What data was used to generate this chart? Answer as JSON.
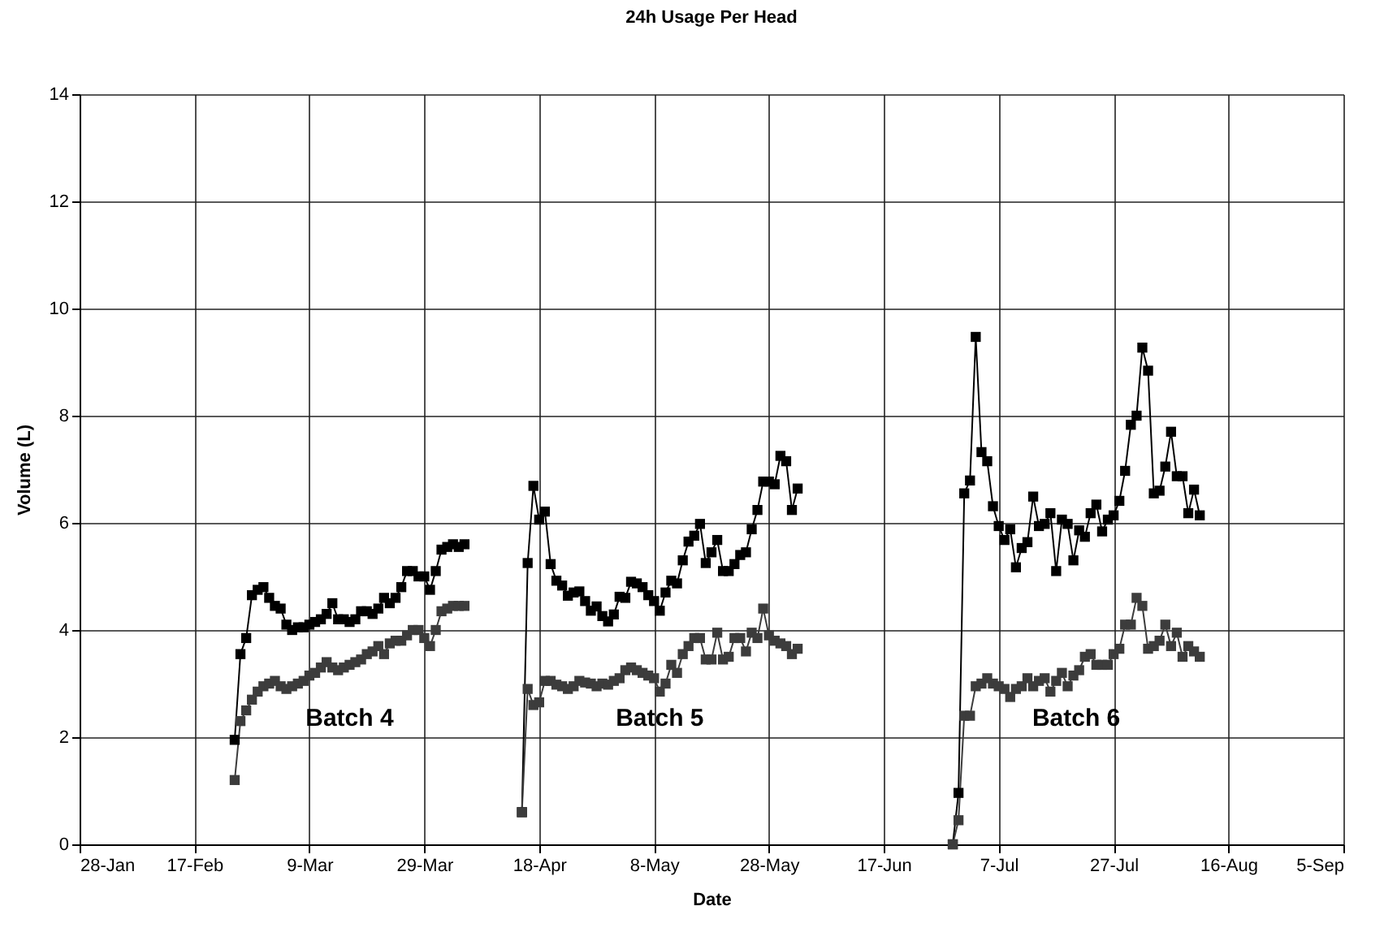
{
  "chart_data": {
    "type": "line",
    "title": "24h Usage Per Head",
    "xlabel": "Date",
    "ylabel": "Volume (L)",
    "x": [
      "--02-24",
      "--02-25",
      "--02-26",
      "--02-27",
      "--02-28",
      "--03-01",
      "--03-02",
      "--03-03",
      "--03-04",
      "--03-05",
      "--03-06",
      "--03-07",
      "--03-08",
      "--03-09",
      "--03-10",
      "--03-11",
      "--03-12",
      "--03-13",
      "--03-14",
      "--03-15",
      "--03-16",
      "--03-17",
      "--03-18",
      "--03-19",
      "--03-20",
      "--03-21",
      "--03-22",
      "--03-23",
      "--03-24",
      "--03-25",
      "--03-26",
      "--03-27",
      "--03-28",
      "--03-29",
      "--03-30",
      "--03-31",
      "--04-01",
      "--04-02",
      "--04-03",
      "--04-04",
      "--04-05",
      "--04-10",
      "--04-15",
      "--04-16",
      "--04-17",
      "--04-18",
      "--04-19",
      "--04-20",
      "--04-21",
      "--04-22",
      "--04-23",
      "--04-24",
      "--04-25",
      "--04-26",
      "--04-27",
      "--04-28",
      "--04-29",
      "--04-30",
      "--05-01",
      "--05-02",
      "--05-03",
      "--05-04",
      "--05-05",
      "--05-06",
      "--05-07",
      "--05-08",
      "--05-09",
      "--05-10",
      "--05-11",
      "--05-12",
      "--05-13",
      "--05-14",
      "--05-15",
      "--05-16",
      "--05-17",
      "--05-18",
      "--05-19",
      "--05-20",
      "--05-21",
      "--05-22",
      "--05-23",
      "--05-24",
      "--05-25",
      "--05-26",
      "--05-27",
      "--05-28",
      "--05-29",
      "--05-30",
      "--05-31",
      "--06-01",
      "--06-02",
      "--06-15",
      "--06-29",
      "--06-30",
      "--07-01",
      "--07-02",
      "--07-03",
      "--07-04",
      "--07-05",
      "--07-06",
      "--07-07",
      "--07-08",
      "--07-09",
      "--07-10",
      "--07-11",
      "--07-12",
      "--07-13",
      "--07-14",
      "--07-15",
      "--07-16",
      "--07-17",
      "--07-18",
      "--07-19",
      "--07-20",
      "--07-21",
      "--07-22",
      "--07-23",
      "--07-24",
      "--07-25",
      "--07-26",
      "--07-27",
      "--07-28",
      "--07-29",
      "--07-30",
      "--07-31",
      "--08-01",
      "--08-02",
      "--08-03",
      "--08-04",
      "--08-05",
      "--08-06",
      "--08-07",
      "--08-08",
      "--08-09",
      "--08-10",
      "--08-11"
    ],
    "series": [
      {
        "color": "#000000",
        "values": [
          1.95,
          3.55,
          3.85,
          4.65,
          4.75,
          4.8,
          4.6,
          4.45,
          4.4,
          4.1,
          4.0,
          4.05,
          4.05,
          4.1,
          4.15,
          4.2,
          4.3,
          4.5,
          4.2,
          4.2,
          4.15,
          4.2,
          4.35,
          4.35,
          4.3,
          4.4,
          4.6,
          4.5,
          4.6,
          4.8,
          5.1,
          5.1,
          5.0,
          5.0,
          4.75,
          5.1,
          5.5,
          5.55,
          5.6,
          5.55,
          5.6,
          null,
          0.6,
          5.25,
          6.69,
          6.06,
          6.21,
          5.23,
          4.92,
          4.83,
          4.64,
          4.7,
          4.72,
          4.54,
          4.36,
          4.44,
          4.26,
          4.16,
          4.29,
          4.62,
          4.6,
          4.9,
          4.87,
          4.8,
          4.65,
          4.54,
          4.36,
          4.7,
          4.92,
          4.87,
          5.3,
          5.65,
          5.76,
          5.98,
          5.25,
          5.45,
          5.68,
          5.1,
          5.1,
          5.23,
          5.4,
          5.45,
          5.88,
          6.24,
          6.77,
          6.77,
          6.72,
          7.25,
          7.15,
          6.24,
          6.64,
          null,
          0,
          0.96,
          6.55,
          6.79,
          9.47,
          7.32,
          7.15,
          6.31,
          5.94,
          5.68,
          5.88,
          5.17,
          5.53,
          5.64,
          6.49,
          5.94,
          5.98,
          6.18,
          5.1,
          6.06,
          5.98,
          5.3,
          5.86,
          5.74,
          6.18,
          6.34,
          5.84,
          6.06,
          6.14,
          6.41,
          6.97,
          7.83,
          8.0,
          9.27,
          8.84,
          6.55,
          6.6,
          7.05,
          7.7,
          6.87,
          6.87,
          6.18,
          6.62,
          6.14
        ]
      },
      {
        "color": "#3c3c3c",
        "values": [
          1.2,
          2.3,
          2.5,
          2.7,
          2.85,
          2.95,
          3.0,
          3.05,
          2.95,
          2.9,
          2.95,
          3.0,
          3.05,
          3.15,
          3.2,
          3.3,
          3.4,
          3.3,
          3.25,
          3.3,
          3.35,
          3.4,
          3.45,
          3.55,
          3.6,
          3.7,
          3.55,
          3.75,
          3.8,
          3.8,
          3.9,
          4.0,
          4.0,
          3.85,
          3.7,
          4.0,
          4.35,
          4.4,
          4.45,
          4.45,
          4.45,
          null,
          0.6,
          2.9,
          2.6,
          2.65,
          3.05,
          3.05,
          2.98,
          2.95,
          2.9,
          2.95,
          3.05,
          3.02,
          3.0,
          2.95,
          3.0,
          2.98,
          3.05,
          3.1,
          3.25,
          3.3,
          3.25,
          3.2,
          3.15,
          3.1,
          2.85,
          3.0,
          3.35,
          3.2,
          3.55,
          3.7,
          3.85,
          3.85,
          3.45,
          3.45,
          3.95,
          3.45,
          3.5,
          3.85,
          3.85,
          3.6,
          3.95,
          3.85,
          4.4,
          3.9,
          3.8,
          3.75,
          3.7,
          3.55,
          3.65,
          null,
          0,
          0.45,
          2.4,
          2.4,
          2.95,
          3.0,
          3.1,
          3.0,
          2.95,
          2.9,
          2.75,
          2.9,
          2.95,
          3.1,
          2.95,
          3.05,
          3.1,
          2.85,
          3.05,
          3.2,
          2.95,
          3.15,
          3.25,
          3.5,
          3.55,
          3.35,
          3.35,
          3.35,
          3.55,
          3.65,
          4.1,
          4.1,
          4.6,
          4.45,
          3.65,
          3.7,
          3.8,
          4.1,
          3.7,
          3.95,
          3.5,
          3.7,
          3.6,
          3.5
        ]
      }
    ],
    "annotations": [
      "Batch 4",
      "Batch 5",
      "Batch 6"
    ],
    "xlim": [
      "--01-28",
      "--09-05"
    ],
    "xticks": [
      {
        "value": "--01-28",
        "label": "28-Jan"
      },
      {
        "value": "--02-17",
        "label": "17-Feb"
      },
      {
        "value": "--03-09",
        "label": "9-Mar"
      },
      {
        "value": "--03-29",
        "label": "29-Mar"
      },
      {
        "value": "--04-18",
        "label": "18-Apr"
      },
      {
        "value": "--05-08",
        "label": "8-May"
      },
      {
        "value": "--05-28",
        "label": "28-May"
      },
      {
        "value": "--06-17",
        "label": "17-Jun"
      },
      {
        "value": "--07-07",
        "label": "7-Jul"
      },
      {
        "value": "--07-27",
        "label": "27-Jul"
      },
      {
        "value": "--08-16",
        "label": "16-Aug"
      },
      {
        "value": "--09-05",
        "label": "5-Sep"
      }
    ],
    "ylim": [
      0,
      14
    ],
    "yticks": [
      0,
      2,
      4,
      6,
      8,
      10,
      12,
      14
    ],
    "grid": true,
    "marker": "square",
    "line_style": "solid"
  }
}
